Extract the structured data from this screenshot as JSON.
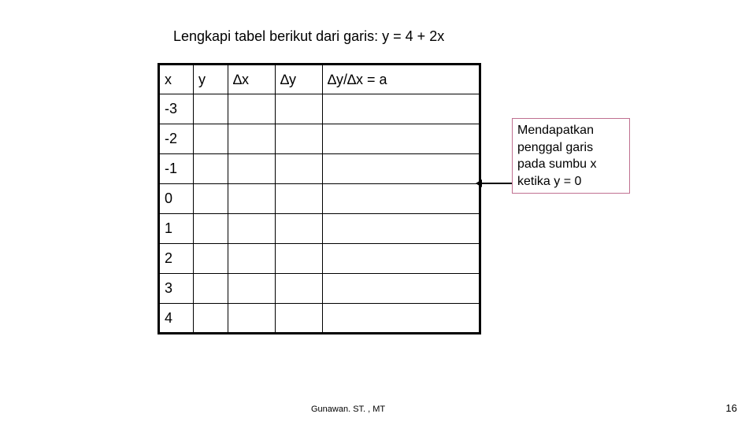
{
  "instruction": "Lengkapi tabel berikut dari garis: y = 4 + 2x",
  "table": {
    "headers": {
      "x": "x",
      "y": "y",
      "dx": "∆x",
      "dy": "∆y",
      "ratio": "∆y/∆x = a"
    },
    "xvalues": [
      "-3",
      "-2",
      "-1",
      "0",
      "1",
      "2",
      "3",
      "4"
    ],
    "border_color": "#000000"
  },
  "annotation": {
    "text": "Mendapatkan penggal garis pada sumbu x ketika y = 0",
    "border_color": "#c07090"
  },
  "footer": {
    "author": "Gunawan. ST. , MT",
    "page": "16"
  },
  "page": {
    "bg": "#ffffff",
    "text_color": "#000000",
    "font": "Arial"
  }
}
